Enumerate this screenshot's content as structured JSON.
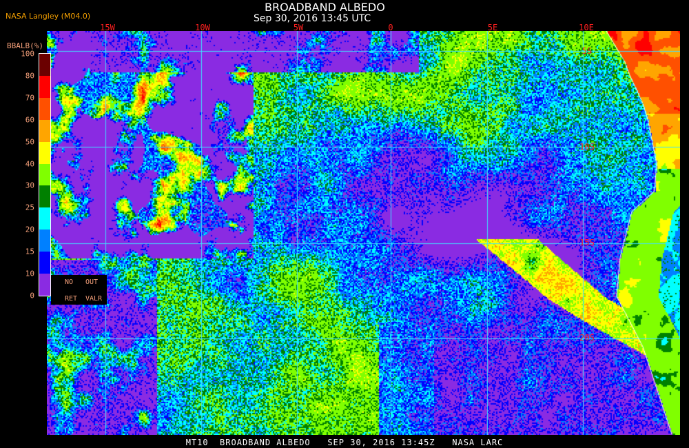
{
  "header": {
    "title": "BROADBAND ALBEDO",
    "subtitle": "Sep 30, 2016 13:45 UTC",
    "source": "NASA Langley (M04.0)"
  },
  "map": {
    "longitude_labels": [
      "15W",
      "10W",
      "5W",
      "0",
      "5E",
      "10E"
    ],
    "latitude_labels": [
      "5S",
      "10S",
      "15S",
      "20S"
    ],
    "grid_color": "#40e0ff",
    "coastline_color": "#ffffff"
  },
  "legend": {
    "title": "BBALB(%)",
    "ticks": [
      "100",
      "80",
      "70",
      "60",
      "50",
      "40",
      "30",
      "25",
      "20",
      "15",
      "10",
      "0"
    ],
    "colors": [
      "#8a2be2",
      "#0000ff",
      "#0080ff",
      "#00ffff",
      "#008000",
      "#80ff00",
      "#ffff00",
      "#ffa500",
      "#ff5000",
      "#ff0000",
      "#6b0000"
    ],
    "note": {
      "no": "NO",
      "out": "OUT",
      "ret": "RET",
      "valr": "VALR"
    }
  },
  "footer": {
    "caption": "MT10  BROADBAND ALBEDO   SEP 30, 2016 13:45Z   NASA LARC"
  }
}
